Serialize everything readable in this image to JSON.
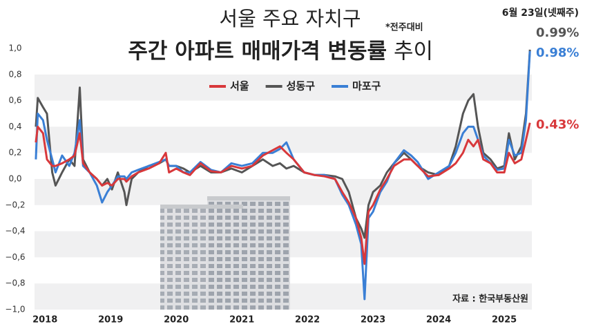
{
  "chart_data": {
    "type": "line",
    "supertitle": "서울 주요 자치구",
    "subtitle": "*전주대비",
    "title": "주간 아파트 매매가격 변동률",
    "title_tail": "추이",
    "date_note": "6월 23일(넷째주)",
    "source": "자료 : 한국부동산원",
    "x": [
      2017.86,
      2017.89,
      2017.97,
      2018.03,
      2018.11,
      2018.16,
      2018.26,
      2018.37,
      2018.45,
      2018.53,
      2018.58,
      2018.68,
      2018.79,
      2018.87,
      2018.95,
      2019.02,
      2019.11,
      2019.21,
      2019.24,
      2019.32,
      2019.42,
      2019.58,
      2019.74,
      2019.84,
      2019.89,
      2020.0,
      2020.11,
      2020.21,
      2020.37,
      2020.53,
      2020.68,
      2020.84,
      2021.0,
      2021.16,
      2021.32,
      2021.47,
      2021.58,
      2021.68,
      2021.79,
      2021.95,
      2022.11,
      2022.26,
      2022.42,
      2022.53,
      2022.63,
      2022.74,
      2022.82,
      2022.87,
      2022.93,
      2023.0,
      2023.11,
      2023.21,
      2023.32,
      2023.47,
      2023.58,
      2023.68,
      2023.84,
      2024.0,
      2024.16,
      2024.26,
      2024.37,
      2024.45,
      2024.53,
      2024.6,
      2024.68,
      2024.79,
      2024.89,
      2025.0,
      2025.07,
      2025.16,
      2025.26,
      2025.33,
      2025.39
    ],
    "series": [
      {
        "name": "서울",
        "color": "#d8383b",
        "end_label": "0.43%",
        "values": [
          0.28,
          0.4,
          0.35,
          0.15,
          0.1,
          0.1,
          0.12,
          0.15,
          0.18,
          0.35,
          0.12,
          0.05,
          0.0,
          -0.05,
          -0.03,
          -0.05,
          0.0,
          0.0,
          -0.02,
          0.02,
          0.05,
          0.08,
          0.12,
          0.2,
          0.05,
          0.08,
          0.05,
          0.03,
          0.12,
          0.06,
          0.05,
          0.1,
          0.08,
          0.1,
          0.18,
          0.22,
          0.25,
          0.2,
          0.15,
          0.05,
          0.03,
          0.02,
          0.0,
          -0.1,
          -0.18,
          -0.3,
          -0.45,
          -0.65,
          -0.25,
          -0.2,
          -0.08,
          0.0,
          0.1,
          0.15,
          0.15,
          0.1,
          0.02,
          0.03,
          0.08,
          0.12,
          0.2,
          0.3,
          0.25,
          0.3,
          0.15,
          0.12,
          0.05,
          0.05,
          0.2,
          0.12,
          0.15,
          0.3,
          0.43
        ]
      },
      {
        "name": "성동구",
        "color": "#555555",
        "end_label": "0.99%",
        "values": [
          0.4,
          0.62,
          0.55,
          0.5,
          0.05,
          -0.05,
          0.05,
          0.15,
          0.1,
          0.7,
          0.15,
          0.05,
          0.0,
          -0.05,
          0.0,
          -0.08,
          0.05,
          -0.1,
          -0.2,
          0.0,
          0.05,
          0.1,
          0.12,
          0.15,
          0.1,
          0.1,
          0.08,
          0.05,
          0.1,
          0.05,
          0.05,
          0.08,
          0.05,
          0.1,
          0.15,
          0.1,
          0.12,
          0.08,
          0.1,
          0.05,
          0.03,
          0.03,
          0.02,
          0.0,
          -0.1,
          -0.3,
          -0.38,
          -0.45,
          -0.2,
          -0.1,
          -0.05,
          0.05,
          0.12,
          0.2,
          0.15,
          0.1,
          0.05,
          0.03,
          0.1,
          0.25,
          0.5,
          0.6,
          0.65,
          0.4,
          0.2,
          0.15,
          0.08,
          0.1,
          0.35,
          0.15,
          0.25,
          0.5,
          0.99
        ]
      },
      {
        "name": "마포구",
        "color": "#3a7fd5",
        "end_label": "0.98%",
        "values": [
          0.15,
          0.5,
          0.45,
          0.3,
          0.15,
          0.05,
          0.18,
          0.1,
          0.2,
          0.45,
          0.1,
          0.05,
          -0.05,
          -0.18,
          -0.1,
          -0.05,
          0.02,
          0.02,
          0.0,
          0.05,
          0.07,
          0.1,
          0.13,
          0.15,
          0.1,
          0.1,
          0.05,
          0.05,
          0.13,
          0.07,
          0.05,
          0.12,
          0.1,
          0.12,
          0.2,
          0.2,
          0.23,
          0.28,
          0.15,
          0.05,
          0.03,
          0.03,
          0.0,
          -0.12,
          -0.2,
          -0.35,
          -0.5,
          -0.92,
          -0.3,
          -0.25,
          -0.1,
          -0.02,
          0.12,
          0.22,
          0.18,
          0.13,
          0.0,
          0.05,
          0.1,
          0.2,
          0.35,
          0.4,
          0.4,
          0.3,
          0.18,
          0.12,
          0.07,
          0.08,
          0.3,
          0.18,
          0.2,
          0.45,
          0.98
        ]
      }
    ],
    "xlim": [
      2017.84,
      2025.42
    ],
    "xticks": [
      2018,
      2019,
      2020,
      2021,
      2022,
      2023,
      2024,
      2025
    ],
    "ylim": [
      -1,
      1
    ],
    "yticks": [
      {
        "value": -1,
        "label": "−1,0"
      },
      {
        "value": -0.8,
        "label": "−0,8"
      },
      {
        "value": -0.6,
        "label": "−0,6"
      },
      {
        "value": -0.4,
        "label": "−0,4"
      },
      {
        "value": -0.2,
        "label": "−0,2"
      },
      {
        "value": 0,
        "label": "0,0"
      },
      {
        "value": 0.2,
        "label": "0,2"
      },
      {
        "value": 0.4,
        "label": "0,4"
      },
      {
        "value": 0.6,
        "label": "0,6"
      },
      {
        "value": 0.8,
        "label": "0,8"
      },
      {
        "value": 1,
        "label": "1,0"
      }
    ],
    "grid": true
  }
}
